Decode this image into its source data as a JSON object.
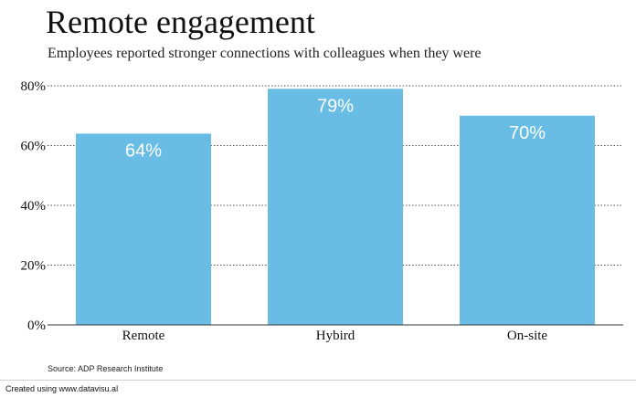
{
  "title": "Remote engagement",
  "subtitle": "Employees reported stronger connections with colleagues when they were",
  "source": "Source: ADP Research Institute",
  "footer": "Created using www.datavisu.al",
  "colors": {
    "bar": "#69bde4",
    "bar_label": "#ffffff",
    "grid": "#555555",
    "text": "#111111"
  },
  "chart_data": {
    "type": "bar",
    "categories": [
      "Remote",
      "Hybird",
      "On-site"
    ],
    "values": [
      64,
      79,
      70
    ],
    "value_labels": [
      "64%",
      "79%",
      "70%"
    ],
    "title": "Remote engagement",
    "subtitle": "Employees reported stronger connections with colleagues when they were",
    "xlabel": "",
    "ylabel": "",
    "ylim": [
      0,
      80
    ],
    "yticks": [
      0,
      20,
      40,
      60,
      80
    ],
    "ytick_labels": [
      "0%",
      "20%",
      "40%",
      "60%",
      "80%"
    ],
    "grid": true,
    "grid_style": "dotted"
  }
}
